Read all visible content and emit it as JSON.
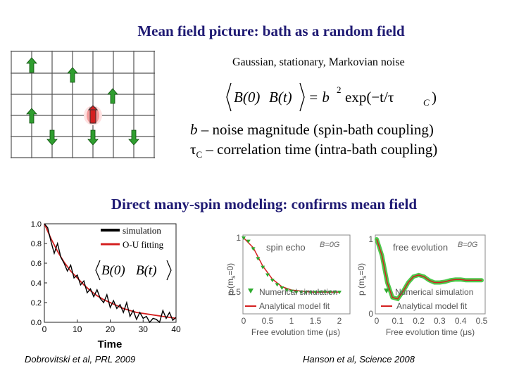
{
  "title_top": "Mean field picture: bath as a random field",
  "subtitle_noise": "Gaussian, stationary, Markovian noise",
  "equation": {
    "lhs_b0": "B(0)",
    "lhs_bt": "B(t)",
    "rhs_prefix": "= b",
    "rhs_exponent": "2",
    "rhs_exp": "exp(−t/τ",
    "rhs_sub": "C",
    "rhs_close": ")"
  },
  "b_definition": {
    "symbol": "b",
    "text": " – noise magnitude (spin-bath coupling)"
  },
  "tau_definition": {
    "symbol": "τ",
    "sub": "C",
    "text": " – correlation time (intra-bath coupling)"
  },
  "title_middle": "Direct many-spin modeling: confirms mean field",
  "colors": {
    "title": "#1f1a73",
    "spin_green": "#2f9e2f",
    "central_red": "#d42020",
    "fit_red": "#d42020"
  },
  "lattice": {
    "icon": "spin-lattice",
    "rows": 5,
    "cols": 7
  },
  "left_plot": {
    "legend": [
      "simulation",
      "O-U fitting"
    ],
    "inset": {
      "b0": "B(0)",
      "bt": "B(t)"
    },
    "y_ticks": [
      "0.0",
      "0.2",
      "0.4",
      "0.6",
      "0.8",
      "1.0"
    ],
    "x_ticks": [
      "0",
      "10",
      "20",
      "30",
      "40"
    ],
    "xlabel": "Time"
  },
  "right_plot1": {
    "label": "spin echo",
    "field": "B=0G",
    "ylabel": "p (m",
    "ylabel_sub": "s",
    "ylabel_end": "=0)",
    "y_ticks": [
      "1",
      "0.5"
    ],
    "x_ticks": [
      "0",
      "0.5",
      "1",
      "1.5",
      "2"
    ],
    "legend": [
      "Numerical simulation",
      "Analytical model fit"
    ],
    "xlabel": "Free evolution time (μs)"
  },
  "right_plot2": {
    "label": "free evolution",
    "field": "B=0G",
    "ylabel": "p (m",
    "ylabel_sub": "s",
    "ylabel_end": "=0)",
    "y_ticks": [
      "1",
      "0"
    ],
    "x_ticks": [
      "0",
      "0.1",
      "0.2",
      "0.3",
      "0.4",
      "0.5"
    ],
    "legend": [
      "Numerical simulation",
      "Analytical model fit"
    ],
    "xlabel": "Free evolution time (μs)"
  },
  "citation_left": "Dobrovitski et al, PRL 2009",
  "citation_right": "Hanson et al, Science 2008",
  "chart_data": [
    {
      "type": "line",
      "title": "",
      "xlabel": "Time",
      "ylabel": "",
      "xlim": [
        0,
        40
      ],
      "ylim": [
        0,
        1.0
      ],
      "series": [
        {
          "name": "simulation",
          "x": [
            0,
            1,
            2,
            3,
            4,
            5,
            6,
            7,
            8,
            9,
            10,
            11,
            12,
            13,
            14,
            15,
            16,
            17,
            18,
            19,
            20,
            21,
            22,
            23,
            24,
            25,
            26,
            27,
            28,
            29,
            30,
            31,
            32,
            33,
            34,
            35,
            36,
            37,
            38,
            39,
            40
          ],
          "y": [
            1.0,
            0.96,
            0.82,
            0.7,
            0.8,
            0.66,
            0.6,
            0.52,
            0.58,
            0.45,
            0.48,
            0.38,
            0.42,
            0.3,
            0.34,
            0.26,
            0.33,
            0.24,
            0.2,
            0.28,
            0.15,
            0.22,
            0.14,
            0.18,
            0.1,
            0.2,
            0.06,
            0.12,
            0.03,
            0.1,
            0.04,
            0.06,
            0.0,
            0.04,
            0.03,
            0.0,
            0.12,
            0.04,
            0.1,
            0.02,
            0.05
          ]
        },
        {
          "name": "O-U fitting",
          "x": [
            0,
            2,
            4,
            6,
            8,
            10,
            12,
            14,
            16,
            18,
            20,
            22,
            24,
            26,
            28,
            30,
            32,
            34,
            36,
            38,
            40
          ],
          "y": [
            1.0,
            0.85,
            0.72,
            0.61,
            0.52,
            0.45,
            0.38,
            0.32,
            0.27,
            0.23,
            0.2,
            0.17,
            0.14,
            0.12,
            0.1,
            0.09,
            0.08,
            0.07,
            0.06,
            0.05,
            0.04
          ]
        }
      ]
    },
    {
      "type": "line",
      "title": "spin echo",
      "xlabel": "Free evolution time (μs)",
      "ylabel": "p (ms=0)",
      "xlim": [
        0,
        2
      ],
      "ylim": [
        0.3,
        1.0
      ],
      "series": [
        {
          "name": "Numerical simulation",
          "x": [
            0,
            0.1,
            0.2,
            0.3,
            0.4,
            0.5,
            0.6,
            0.7,
            0.8,
            0.9,
            1.0,
            1.1,
            1.2,
            1.3,
            1.4,
            1.5,
            1.6,
            1.7,
            1.8,
            1.9,
            2.0
          ],
          "y": [
            1.0,
            0.97,
            0.9,
            0.81,
            0.73,
            0.66,
            0.61,
            0.57,
            0.54,
            0.52,
            0.51,
            0.5,
            0.5,
            0.5,
            0.5,
            0.5,
            0.5,
            0.5,
            0.5,
            0.5,
            0.5
          ]
        },
        {
          "name": "Analytical model fit",
          "x": [
            0,
            0.2,
            0.4,
            0.6,
            0.8,
            1.0,
            1.2,
            1.4,
            1.6,
            1.8,
            2.0
          ],
          "y": [
            1.0,
            0.91,
            0.74,
            0.62,
            0.55,
            0.52,
            0.51,
            0.5,
            0.5,
            0.5,
            0.5
          ]
        }
      ]
    },
    {
      "type": "line",
      "title": "free evolution",
      "xlabel": "Free evolution time (μs)",
      "ylabel": "p (ms=0)",
      "xlim": [
        0,
        0.5
      ],
      "ylim": [
        0,
        1.0
      ],
      "series": [
        {
          "name": "Numerical simulation",
          "x": [
            0,
            0.025,
            0.05,
            0.075,
            0.1,
            0.125,
            0.15,
            0.175,
            0.2,
            0.225,
            0.25,
            0.275,
            0.3,
            0.325,
            0.35,
            0.375,
            0.4,
            0.425,
            0.45,
            0.475,
            0.5
          ],
          "y": [
            1.0,
            0.78,
            0.42,
            0.22,
            0.2,
            0.3,
            0.42,
            0.5,
            0.52,
            0.5,
            0.45,
            0.42,
            0.42,
            0.43,
            0.45,
            0.46,
            0.46,
            0.45,
            0.45,
            0.45,
            0.45
          ]
        },
        {
          "name": "Analytical model fit",
          "x": [
            0,
            0.025,
            0.05,
            0.075,
            0.1,
            0.125,
            0.15,
            0.175,
            0.2,
            0.225,
            0.25,
            0.275,
            0.3,
            0.325,
            0.35,
            0.375,
            0.4,
            0.425,
            0.45,
            0.475,
            0.5
          ],
          "y": [
            1.0,
            0.78,
            0.42,
            0.22,
            0.2,
            0.3,
            0.42,
            0.5,
            0.52,
            0.5,
            0.45,
            0.42,
            0.42,
            0.43,
            0.45,
            0.46,
            0.46,
            0.45,
            0.45,
            0.45,
            0.45
          ]
        }
      ]
    }
  ]
}
